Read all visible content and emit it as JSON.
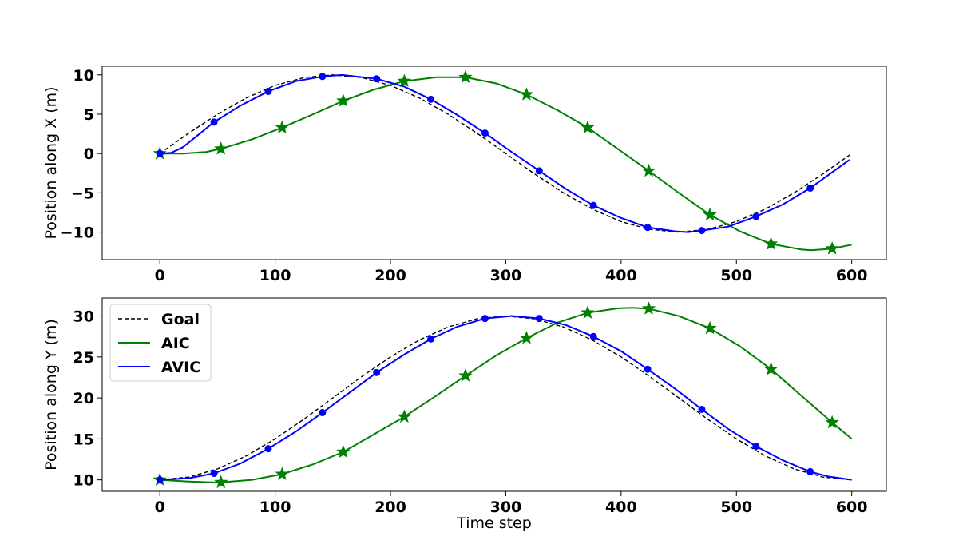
{
  "chart_data": [
    {
      "type": "line",
      "xlabel": "",
      "ylabel": "Position along X (m)",
      "xlim": [
        -50,
        630
      ],
      "ylim": [
        -13.5,
        11.1
      ],
      "xticks": [
        0,
        100,
        200,
        300,
        400,
        500,
        600
      ],
      "xtick_labels": [
        "0",
        "100",
        "200",
        "300",
        "400",
        "500",
        "600"
      ],
      "yticks": [
        10,
        5,
        0,
        -5,
        -10
      ],
      "ytick_labels": [
        "10",
        "5",
        "0",
        "−5",
        "−10"
      ],
      "series": [
        {
          "name": "Goal",
          "color": "#000000",
          "style": "dashed",
          "marker": "none",
          "x": [
            0,
            25,
            50,
            75,
            100,
            125,
            150,
            175,
            200,
            225,
            250,
            275,
            300,
            325,
            350,
            375,
            400,
            425,
            450,
            475,
            500,
            525,
            550,
            575,
            600
          ],
          "y": [
            0,
            2.59,
            5,
            7.07,
            8.66,
            9.66,
            10,
            9.66,
            8.66,
            7.07,
            5,
            2.59,
            0,
            -2.59,
            -5,
            -7.07,
            -8.66,
            -9.66,
            -10,
            -9.66,
            -8.66,
            -7.07,
            -5,
            -2.59,
            0
          ]
        },
        {
          "name": "AIC",
          "color": "#008000",
          "style": "solid",
          "marker": "star",
          "x": [
            0,
            20,
            40,
            53,
            80,
            106,
            133,
            159,
            185,
            212,
            240,
            265,
            292,
            318,
            345,
            371,
            398,
            424,
            450,
            477,
            503,
            530,
            556,
            565,
            583,
            600
          ],
          "y": [
            0,
            0,
            0.2,
            0.6,
            1.8,
            3.3,
            5.0,
            6.7,
            8.1,
            9.2,
            9.7,
            9.7,
            8.9,
            7.5,
            5.5,
            3.3,
            0.5,
            -2.2,
            -5.0,
            -7.8,
            -9.9,
            -11.5,
            -12.2,
            -12.3,
            -12.1,
            -11.6
          ],
          "marker_x": [
            0,
            53,
            106,
            159,
            212,
            265,
            318,
            371,
            424,
            477,
            530,
            583
          ],
          "marker_y": [
            0,
            0.6,
            3.3,
            6.7,
            9.2,
            9.7,
            7.5,
            3.3,
            -2.2,
            -7.8,
            -11.5,
            -12.1
          ]
        },
        {
          "name": "AVIC",
          "color": "#0000ff",
          "style": "solid",
          "marker": "circle",
          "x": [
            0,
            10,
            20,
            47,
            70,
            94,
            118,
            141,
            158,
            188,
            212,
            235,
            258,
            282,
            305,
            329,
            352,
            376,
            400,
            423,
            447,
            458,
            470,
            493,
            517,
            540,
            564,
            598
          ],
          "y": [
            0,
            0.1,
            0.8,
            4.0,
            6.1,
            7.9,
            9.2,
            9.8,
            10.0,
            9.5,
            8.5,
            6.9,
            4.9,
            2.6,
            0.2,
            -2.2,
            -4.5,
            -6.6,
            -8.2,
            -9.4,
            -9.9,
            -10.0,
            -9.8,
            -9.3,
            -8.0,
            -6.5,
            -4.4,
            -0.8
          ],
          "marker_x": [
            0,
            47,
            94,
            141,
            188,
            235,
            282,
            329,
            376,
            423,
            470,
            517,
            564
          ],
          "marker_y": [
            0,
            4.0,
            7.9,
            9.8,
            9.5,
            6.9,
            2.6,
            -2.2,
            -6.6,
            -9.4,
            -9.8,
            -8.0,
            -4.4
          ]
        }
      ]
    },
    {
      "type": "line",
      "xlabel": "Time step",
      "ylabel": "Position along Y (m)",
      "xlim": [
        -50,
        630
      ],
      "ylim": [
        8.6,
        32.2
      ],
      "xticks": [
        0,
        100,
        200,
        300,
        400,
        500,
        600
      ],
      "xtick_labels": [
        "0",
        "100",
        "200",
        "300",
        "400",
        "500",
        "600"
      ],
      "yticks": [
        30,
        25,
        20,
        15,
        10
      ],
      "ytick_labels": [
        "30",
        "25",
        "20",
        "15",
        "10"
      ],
      "legend": {
        "position": "upper-left",
        "entries": [
          "Goal",
          "AIC",
          "AVIC"
        ]
      },
      "series": [
        {
          "name": "Goal",
          "color": "#000000",
          "style": "dashed",
          "marker": "none",
          "x": [
            0,
            25,
            50,
            75,
            100,
            125,
            150,
            175,
            200,
            225,
            250,
            275,
            300,
            325,
            350,
            375,
            400,
            425,
            450,
            475,
            500,
            525,
            550,
            575,
            600
          ],
          "y": [
            10,
            10.34,
            11.34,
            12.93,
            15.0,
            17.41,
            20.0,
            22.59,
            25.0,
            27.07,
            28.66,
            29.66,
            30.0,
            29.66,
            28.66,
            27.07,
            25.0,
            22.59,
            20.0,
            17.41,
            15.0,
            12.93,
            11.34,
            10.34,
            10.0
          ]
        },
        {
          "name": "AIC",
          "color": "#008000",
          "style": "solid",
          "marker": "star",
          "x": [
            0,
            25,
            45,
            53,
            80,
            106,
            133,
            159,
            185,
            212,
            240,
            265,
            292,
            318,
            345,
            371,
            398,
            410,
            424,
            450,
            477,
            503,
            530,
            556,
            583,
            600
          ],
          "y": [
            10,
            9.8,
            9.7,
            9.7,
            10.0,
            10.7,
            11.9,
            13.4,
            15.5,
            17.7,
            20.3,
            22.7,
            25.2,
            27.3,
            29.2,
            30.4,
            30.95,
            31.0,
            30.9,
            30.0,
            28.5,
            26.3,
            23.5,
            20.3,
            17.0,
            15.0
          ],
          "marker_x": [
            0,
            53,
            106,
            159,
            212,
            265,
            318,
            371,
            424,
            477,
            530,
            583
          ],
          "marker_y": [
            10,
            9.7,
            10.7,
            13.4,
            17.7,
            22.7,
            27.3,
            30.4,
            30.9,
            28.5,
            23.5,
            17.0
          ]
        },
        {
          "name": "AVIC",
          "color": "#0000ff",
          "style": "solid",
          "marker": "circle",
          "x": [
            0,
            25,
            47,
            70,
            94,
            118,
            141,
            165,
            188,
            212,
            235,
            258,
            282,
            305,
            329,
            352,
            376,
            400,
            423,
            447,
            470,
            493,
            517,
            540,
            564,
            580,
            600
          ],
          "y": [
            10,
            10.2,
            10.8,
            12.0,
            13.8,
            15.9,
            18.2,
            20.7,
            23.1,
            25.3,
            27.2,
            28.7,
            29.7,
            30.0,
            29.7,
            28.9,
            27.5,
            25.7,
            23.5,
            21.1,
            18.6,
            16.2,
            14.1,
            12.4,
            11.0,
            10.4,
            10.0
          ],
          "marker_x": [
            0,
            47,
            94,
            141,
            188,
            235,
            282,
            329,
            376,
            423,
            470,
            517,
            564
          ],
          "marker_y": [
            10,
            10.8,
            13.8,
            18.2,
            23.1,
            27.2,
            29.7,
            29.7,
            27.5,
            23.5,
            18.6,
            14.1,
            11.0
          ]
        }
      ]
    }
  ]
}
